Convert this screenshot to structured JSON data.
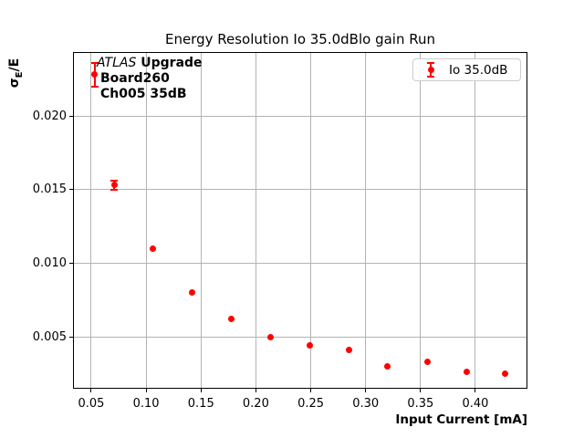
{
  "title": "Energy Resolution Io 35.0dBlo gain Run",
  "annotation": {
    "experiment": "ATLAS",
    "line1_rest": " Upgrade",
    "line2": "Board260",
    "line3": "Ch005 35dB"
  },
  "legend": {
    "label": "Io 35.0dB"
  },
  "axes": {
    "xlabel": "Input Current [mA]",
    "ylabel_sigma": "σ",
    "ylabel_sub": "E",
    "ylabel_rest": "/E",
    "x_tick_labels": [
      "0.05",
      "0.10",
      "0.15",
      "0.20",
      "0.25",
      "0.30",
      "0.35",
      "0.40"
    ],
    "y_tick_labels": [
      "0.005",
      "0.010",
      "0.015",
      "0.020"
    ]
  },
  "colors": {
    "series": "#ff0000",
    "grid": "#b3b3b3",
    "spine": "#000000",
    "legend_border": "#cccccc",
    "background": "#ffffff"
  },
  "chart_data": {
    "type": "scatter",
    "title": "Energy Resolution Io 35.0dBlo gain Run",
    "xlabel": "Input Current [mA]",
    "ylabel": "σE/E",
    "grid": true,
    "legend_position": "upper right",
    "legend_entries": [
      "Io 35.0dB"
    ],
    "xlim": [
      0.0334,
      0.4474
    ],
    "ylim": [
      0.00148,
      0.02434
    ],
    "x_ticks": [
      0.05,
      0.1,
      0.15,
      0.2,
      0.25,
      0.3,
      0.35,
      0.4
    ],
    "y_ticks": [
      0.005,
      0.01,
      0.015,
      0.02
    ],
    "series": [
      {
        "name": "Io 35.0dB",
        "color": "#ff0000",
        "marker": "circle-with-errorbars",
        "x": [
          0.053,
          0.071,
          0.106,
          0.142,
          0.178,
          0.213,
          0.249,
          0.285,
          0.32,
          0.356,
          0.392,
          0.427
        ],
        "y": [
          0.0228,
          0.0153,
          0.011,
          0.008,
          0.0062,
          0.005,
          0.0044,
          0.0041,
          0.003,
          0.0033,
          0.0026,
          0.0025
        ],
        "yerr": [
          0.0008,
          0.0003,
          0,
          0,
          0,
          0,
          0,
          0,
          0,
          0,
          0,
          0
        ]
      }
    ]
  }
}
